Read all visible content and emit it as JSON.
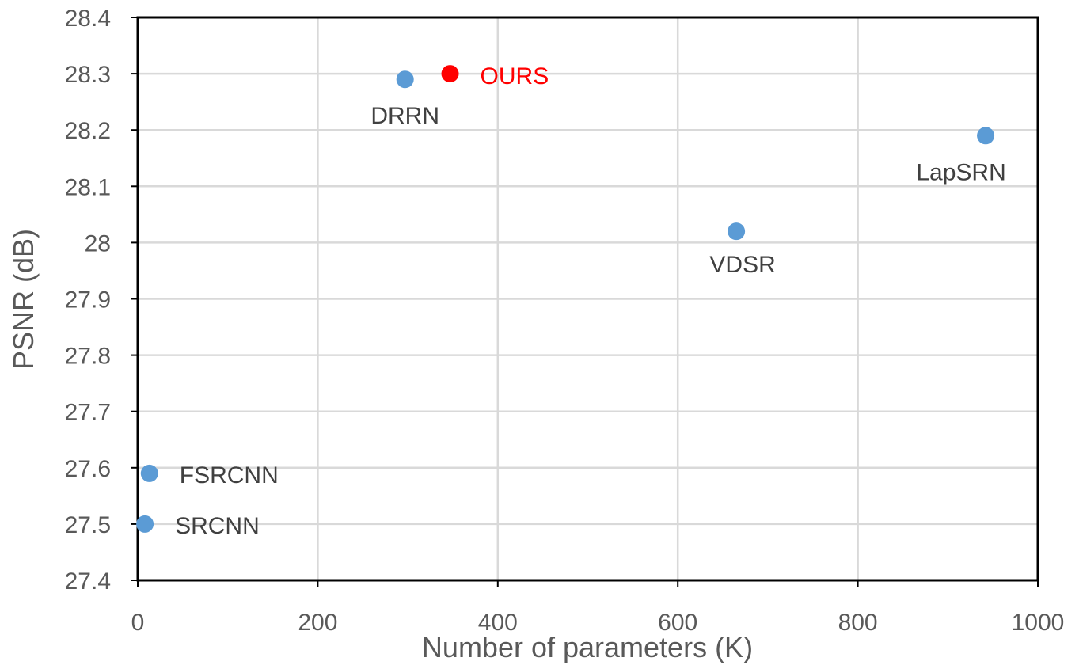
{
  "chart_data": {
    "type": "scatter",
    "xlabel": "Number of parameters (K)",
    "ylabel": "PSNR (dB)",
    "xlim": [
      0,
      1000
    ],
    "ylim": [
      27.4,
      28.4
    ],
    "x_ticks": [
      "0",
      "200",
      "400",
      "600",
      "800",
      "1000"
    ],
    "y_ticks": [
      "27.4",
      "27.5",
      "27.6",
      "27.7",
      "27.8",
      "27.9",
      "28",
      "28.1",
      "28.2",
      "28.3",
      "28.4"
    ],
    "grid": true,
    "colors": {
      "default": "#5B9BD5",
      "highlight": "#FF0000",
      "label": "#404040",
      "grid": "#D9D9D9",
      "axis": "#000000"
    },
    "points": [
      {
        "name": "SRCNN",
        "x": 8,
        "y": 27.5,
        "highlight": false
      },
      {
        "name": "FSRCNN",
        "x": 13,
        "y": 27.59,
        "highlight": false
      },
      {
        "name": "DRRN",
        "x": 297,
        "y": 28.29,
        "highlight": false
      },
      {
        "name": "OURS",
        "x": 347,
        "y": 28.3,
        "highlight": true
      },
      {
        "name": "VDSR",
        "x": 665,
        "y": 28.02,
        "highlight": false
      },
      {
        "name": "LapSRN",
        "x": 942,
        "y": 28.19,
        "highlight": false
      }
    ]
  }
}
